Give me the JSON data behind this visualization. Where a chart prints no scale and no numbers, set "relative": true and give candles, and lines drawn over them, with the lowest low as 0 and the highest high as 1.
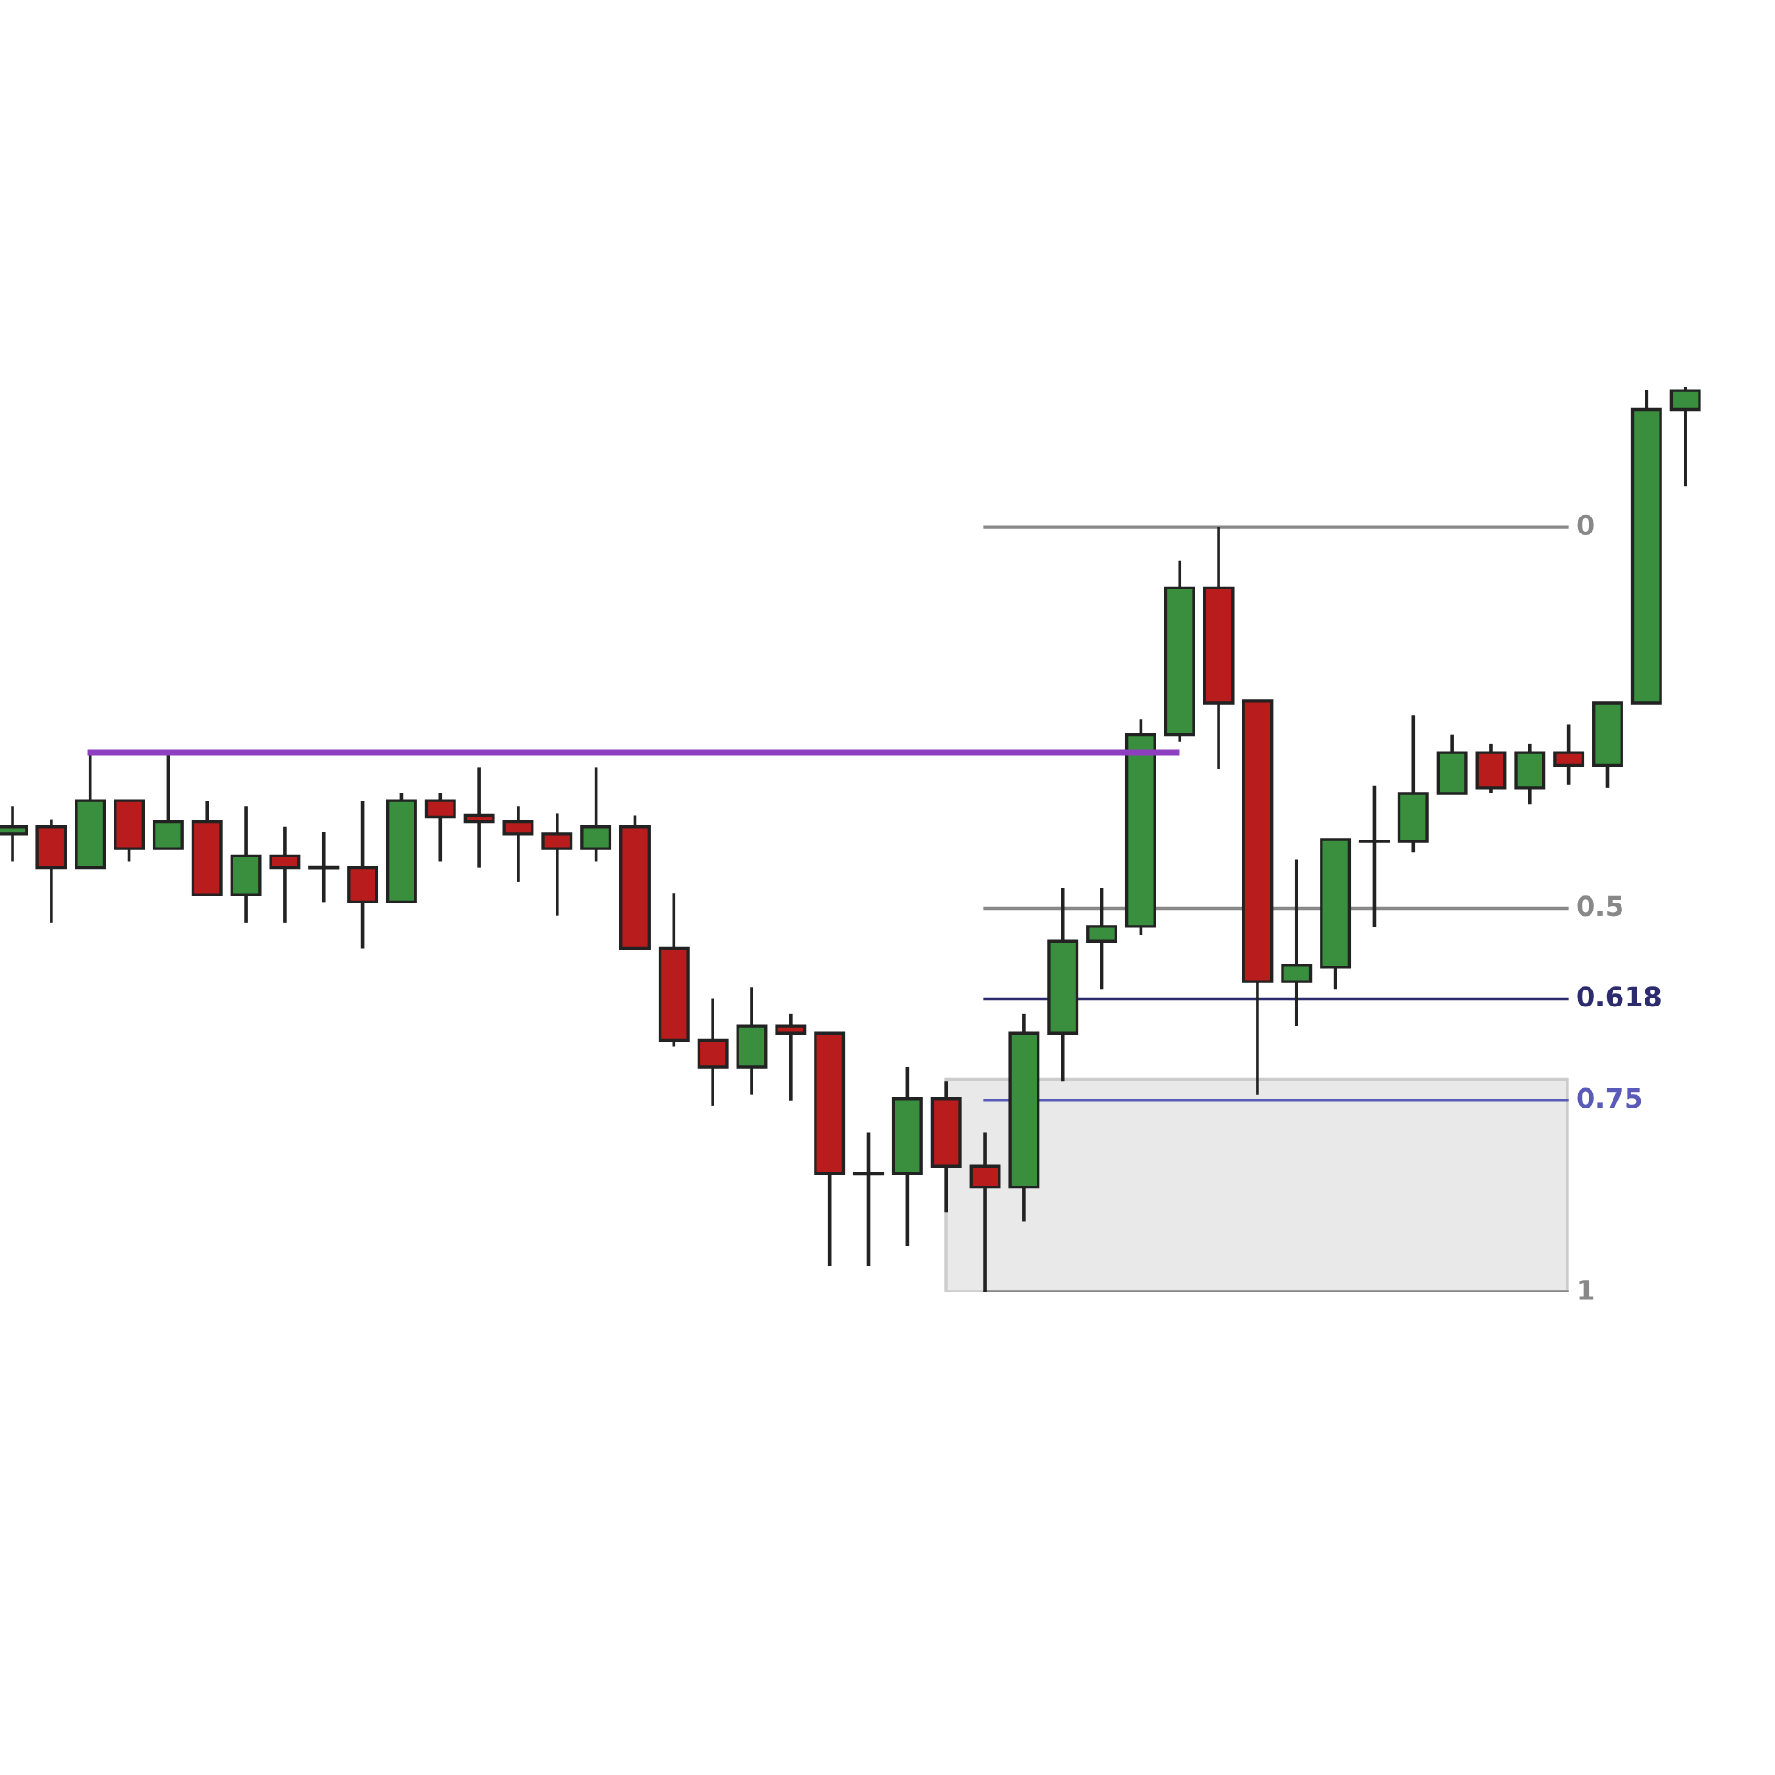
{
  "chart_data": {
    "type": "candlestick",
    "relative": true,
    "grid": false,
    "categories": [
      null,
      null,
      null,
      null,
      null,
      null,
      null,
      null,
      null,
      null,
      null,
      null,
      null,
      null,
      null,
      null,
      null,
      null,
      null,
      null,
      null,
      null,
      null,
      null,
      null,
      null,
      null,
      null,
      null,
      null,
      null,
      null,
      null,
      null,
      null,
      null,
      null,
      null,
      null,
      null,
      null,
      null,
      null,
      null
    ],
    "series": [
      {
        "colors": [
          "#3a8f3e",
          "#b81c1c",
          "#3a8f3e",
          "#b81c1c",
          "#3a8f3e",
          "#b81c1c",
          "#3a8f3e",
          "#b81c1c",
          "#222222",
          "#b81c1c",
          "#3a8f3e",
          "#b81c1c",
          "#b81c1c",
          "#b81c1c",
          "#b81c1c",
          "#3a8f3e",
          "#b81c1c",
          "#b81c1c",
          "#b81c1c",
          "#3a8f3e",
          "#b81c1c",
          "#b81c1c",
          "#222222",
          "#3a8f3e",
          "#b81c1c",
          "#b81c1c",
          "#3a8f3e",
          "#3a8f3e",
          "#3a8f3e",
          "#3a8f3e",
          "#3a8f3e",
          "#b81c1c",
          "#b81c1c",
          "#3a8f3e",
          "#3a8f3e",
          "#222222",
          "#3a8f3e",
          "#3a8f3e",
          "#b81c1c",
          "#3a8f3e",
          "#b81c1c",
          "#3a8f3e",
          "#3a8f3e",
          "#3a8f3e"
        ],
        "ohlc": [
          [
            0.506,
            0.537,
            0.476,
            0.514
          ],
          [
            0.514,
            0.522,
            0.408,
            0.469
          ],
          [
            0.469,
            0.598,
            0.469,
            0.543
          ],
          [
            0.543,
            0.543,
            0.476,
            0.49
          ],
          [
            0.49,
            0.598,
            0.49,
            0.52
          ],
          [
            0.52,
            0.543,
            0.439,
            0.439
          ],
          [
            0.439,
            0.537,
            0.408,
            0.482
          ],
          [
            0.482,
            0.514,
            0.408,
            0.469
          ],
          [
            0.469,
            0.508,
            0.431,
            0.469
          ],
          [
            0.469,
            0.543,
            0.38,
            0.431
          ],
          [
            0.431,
            0.551,
            0.431,
            0.543
          ],
          [
            0.543,
            0.551,
            0.476,
            0.525
          ],
          [
            0.527,
            0.58,
            0.469,
            0.52
          ],
          [
            0.52,
            0.537,
            0.453,
            0.506
          ],
          [
            0.506,
            0.529,
            0.416,
            0.49
          ],
          [
            0.49,
            0.58,
            0.476,
            0.514
          ],
          [
            0.514,
            0.527,
            0.38,
            0.38
          ],
          [
            0.38,
            0.441,
            0.271,
            0.278
          ],
          [
            0.278,
            0.324,
            0.206,
            0.249
          ],
          [
            0.249,
            0.337,
            0.218,
            0.294
          ],
          [
            0.294,
            0.308,
            0.212,
            0.286
          ],
          [
            0.286,
            0.286,
            0.029,
            0.131
          ],
          [
            0.131,
            0.176,
            0.029,
            0.131
          ],
          [
            0.131,
            0.249,
            0.051,
            0.214
          ],
          [
            0.214,
            0.233,
            0.088,
            0.139
          ],
          [
            0.139,
            0.176,
            0.0,
            0.116
          ],
          [
            0.116,
            0.308,
            0.078,
            0.286
          ],
          [
            0.286,
            0.447,
            0.233,
            0.388
          ],
          [
            0.388,
            0.447,
            0.335,
            0.404
          ],
          [
            0.404,
            0.633,
            0.394,
            0.616
          ],
          [
            0.616,
            0.808,
            0.608,
            0.778
          ],
          [
            0.778,
            0.845,
            0.578,
            0.651
          ],
          [
            0.653,
            0.653,
            0.218,
            0.343
          ],
          [
            0.343,
            0.478,
            0.294,
            0.361
          ],
          [
            0.359,
            0.5,
            0.335,
            0.5
          ],
          [
            0.498,
            0.559,
            0.404,
            0.498
          ],
          [
            0.498,
            0.637,
            0.486,
            0.551
          ],
          [
            0.551,
            0.616,
            0.551,
            0.596
          ],
          [
            0.596,
            0.606,
            0.551,
            0.557
          ],
          [
            0.557,
            0.606,
            0.539,
            0.596
          ],
          [
            0.596,
            0.627,
            0.561,
            0.582
          ],
          [
            0.582,
            0.651,
            0.557,
            0.651
          ],
          [
            0.651,
            0.996,
            0.651,
            0.975
          ],
          [
            0.975,
            1.0,
            0.89,
            0.996
          ]
        ]
      }
    ],
    "ref_lines": [
      {
        "axis": "y",
        "value": 0.845,
        "color": "#888888"
      },
      {
        "axis": "y",
        "value": 0.424,
        "color": "#888888"
      },
      {
        "axis": "y",
        "value": 0.324,
        "color": "#2b2b6e"
      },
      {
        "axis": "y",
        "value": 0.212,
        "color": "#5a5ab8"
      },
      {
        "axis": "y",
        "value": 0.0,
        "color": "#888888"
      },
      {
        "axis": "y",
        "value": 0.596,
        "color": "#8e3fbf",
        "line_style": "solid"
      }
    ],
    "bands": [
      {
        "axis": "y",
        "from": 0.0,
        "to": 0.235,
        "color": "#e9e9e9"
      }
    ],
    "annotations": [
      "0",
      "0.5",
      "0.618",
      "0.75",
      "1"
    ]
  }
}
